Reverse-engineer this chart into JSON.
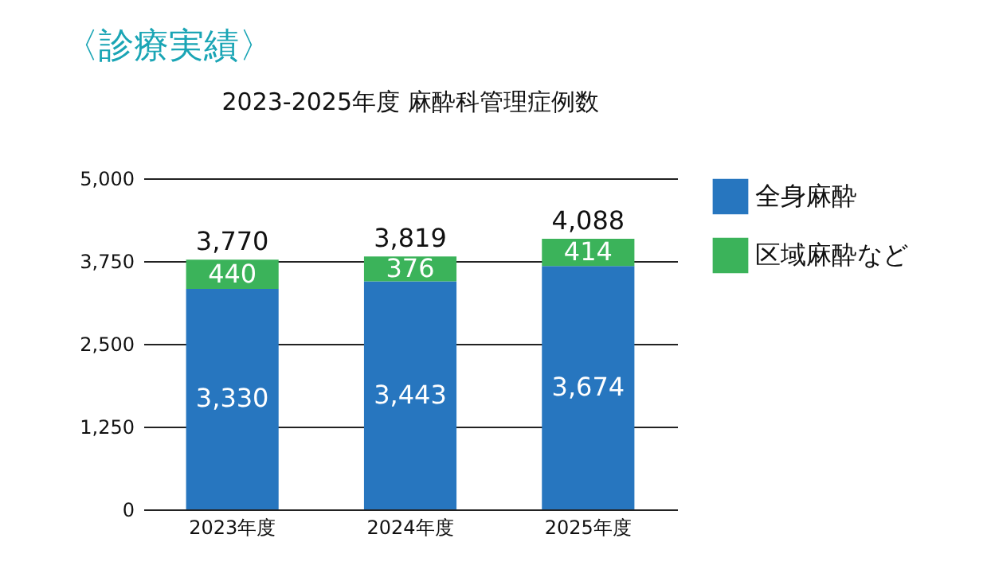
{
  "chart_data": {
    "type": "bar",
    "title": "〈診療実績〉",
    "subtitle": "2023-2025年度 麻酔科管理症例数",
    "categories": [
      "2023年度",
      "2024年度",
      "2025年度"
    ],
    "series": [
      {
        "name": "全身麻酔",
        "color": "#2776bf",
        "values": [
          3330,
          3443,
          3674
        ],
        "value_labels": [
          "3,330",
          "3,443",
          "3,674"
        ]
      },
      {
        "name": "区域麻酔など",
        "color": "#3bb35a",
        "values": [
          440,
          376,
          414
        ],
        "value_labels": [
          "440",
          "376",
          "414"
        ]
      }
    ],
    "stacked": true,
    "totals": [
      "3,770",
      "3,819",
      "4,088"
    ],
    "ylim": [
      0,
      5000
    ],
    "yticks": [
      {
        "value": 0,
        "label": "0"
      },
      {
        "value": 1250,
        "label": "1,250"
      },
      {
        "value": 2500,
        "label": "2,500"
      },
      {
        "value": 3750,
        "label": "3,750"
      },
      {
        "value": 5000,
        "label": "5,000"
      }
    ],
    "grid": "y",
    "legend": "right"
  }
}
